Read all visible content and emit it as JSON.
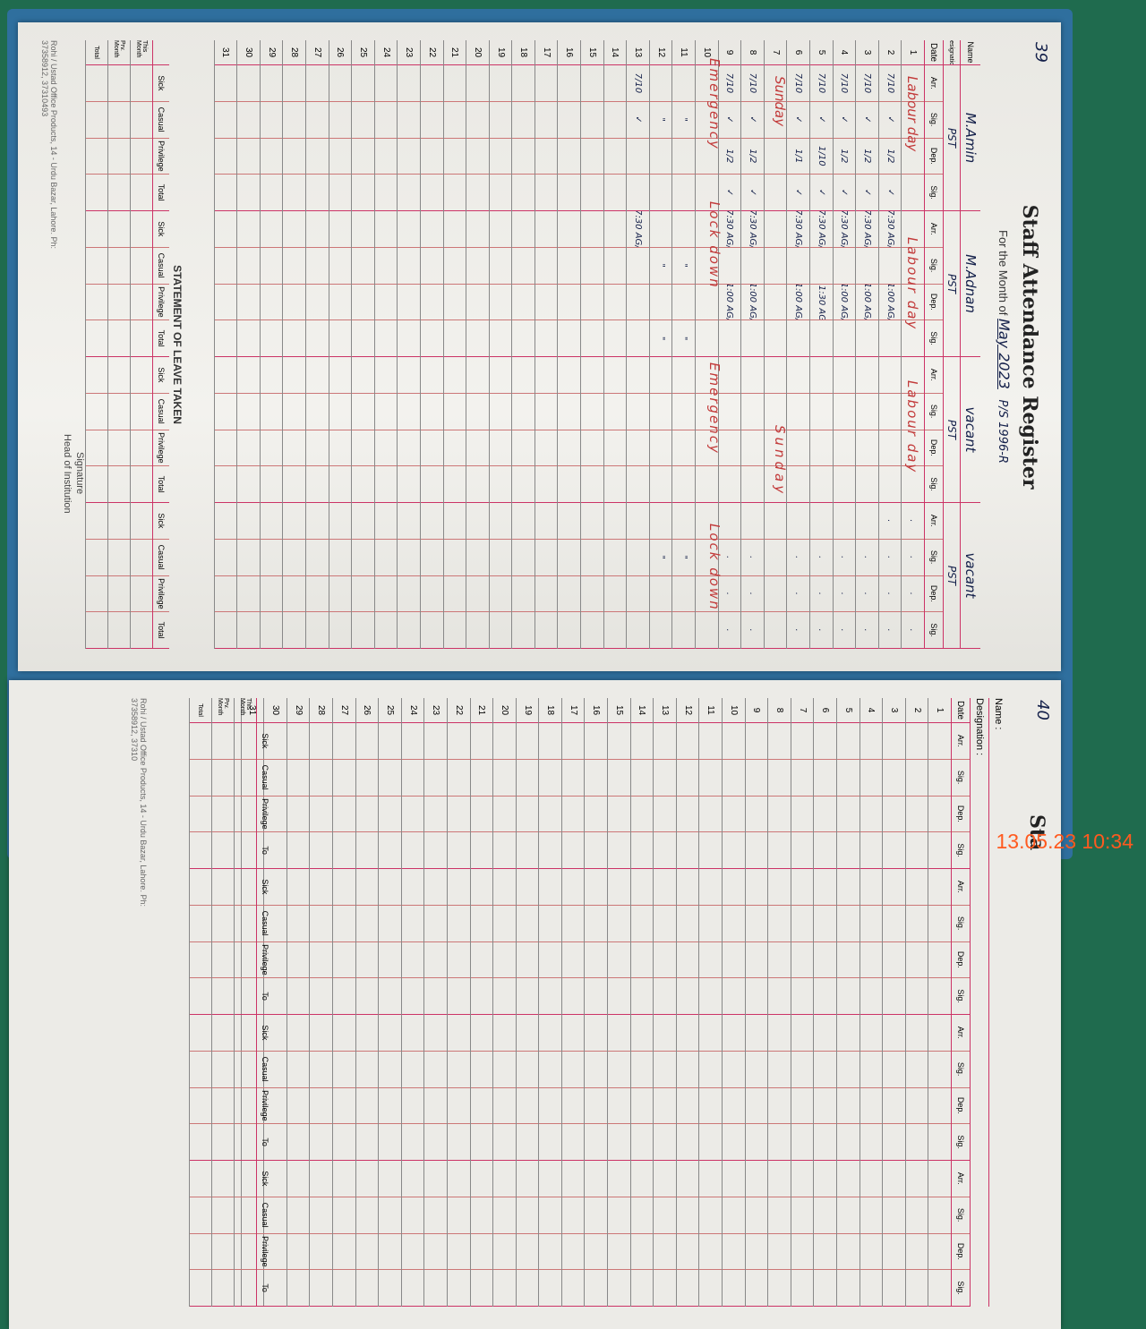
{
  "left_page": {
    "page_number": "39",
    "title": "Staff Attendance Register",
    "month_label": "For the Month of",
    "month_value": "May 2023",
    "reference": "P/S 1996-R",
    "name_label": "Name",
    "designation_label": "Designation",
    "date_label": "Date",
    "col_labels": [
      "Arr.",
      "Sig.",
      "Dep.",
      "Sig."
    ],
    "staff": [
      {
        "name": "M.Amin",
        "designation": "PST"
      },
      {
        "name": "M.Adnan",
        "designation": "PST"
      },
      {
        "name": "vacant",
        "designation": "PST"
      },
      {
        "name": "vacant",
        "designation": "PST"
      }
    ],
    "rows": [
      {
        "date": "1",
        "cells": [
          "",
          "",
          "",
          "",
          "",
          "",
          "",
          "",
          "",
          "",
          "",
          "",
          ".",
          ".",
          ".",
          "."
        ]
      },
      {
        "date": "2",
        "cells": [
          "7/10",
          "✓",
          "1/2",
          "✓",
          "7:30 AG/",
          "",
          "1:00 AG/",
          "",
          "",
          "",
          "",
          "",
          ".",
          ".",
          ".",
          "."
        ]
      },
      {
        "date": "3",
        "cells": [
          "7/10",
          "✓",
          "1/2",
          "✓",
          "7:30 AG/",
          "",
          "1:00 AG/",
          "",
          "",
          "",
          "",
          "",
          "",
          ".",
          ".",
          "."
        ]
      },
      {
        "date": "4",
        "cells": [
          "7/10",
          "✓",
          "1/2",
          "✓",
          "7:30 AG/",
          "",
          "1:00 AG/",
          "",
          "",
          "",
          "",
          "",
          "",
          ".",
          ".",
          "."
        ]
      },
      {
        "date": "5",
        "cells": [
          "7/10",
          "✓",
          "1/10",
          "✓",
          "7:30 AG/",
          "",
          "11:30 AG/",
          "",
          "",
          "",
          "",
          "",
          "",
          ".",
          ".",
          "."
        ]
      },
      {
        "date": "6",
        "cells": [
          "7/10",
          "✓",
          "1/1",
          "✓",
          "7:30 AG/",
          "",
          "1:00 AG/",
          "",
          "",
          "",
          "",
          "",
          "",
          ".",
          ".",
          "."
        ]
      },
      {
        "date": "7",
        "cells": [
          "",
          "",
          "",
          "",
          "",
          "",
          "",
          "",
          "",
          "",
          "",
          "",
          "",
          "",
          "",
          ""
        ]
      },
      {
        "date": "8",
        "cells": [
          "7/10",
          "✓",
          "1/2",
          "✓",
          "7:30 AG/",
          "",
          "1:00 AG/",
          "",
          "",
          "",
          "",
          "",
          "",
          ".",
          ".",
          "."
        ]
      },
      {
        "date": "9",
        "cells": [
          "7/10",
          "✓",
          "1/2",
          "✓",
          "7:30 AG/",
          "",
          "1:00 AG/",
          "",
          "",
          "",
          "",
          "",
          "",
          ".",
          ".",
          "."
        ]
      },
      {
        "date": "10",
        "cells": [
          "",
          "",
          "",
          "",
          "",
          "",
          "",
          "",
          "",
          "",
          "",
          "",
          "",
          "",
          "",
          ""
        ]
      },
      {
        "date": "11",
        "cells": [
          "",
          "\"",
          "",
          "",
          "",
          "\"",
          "",
          "\"",
          "",
          "",
          "",
          "",
          "",
          "\"",
          "",
          ""
        ]
      },
      {
        "date": "12",
        "cells": [
          "",
          "\"",
          "",
          "",
          "",
          "\"",
          "",
          "\"",
          "",
          "",
          "",
          "",
          "",
          "\"",
          "",
          ""
        ]
      },
      {
        "date": "13",
        "cells": [
          "7/10",
          "✓",
          "",
          "",
          "7:30 AG/",
          "",
          "",
          "",
          "",
          "",
          "",
          "",
          "",
          "",
          "",
          ""
        ]
      },
      {
        "date": "14",
        "cells": []
      },
      {
        "date": "15",
        "cells": []
      },
      {
        "date": "16",
        "cells": []
      },
      {
        "date": "17",
        "cells": []
      },
      {
        "date": "18",
        "cells": []
      },
      {
        "date": "19",
        "cells": []
      },
      {
        "date": "20",
        "cells": []
      },
      {
        "date": "21",
        "cells": []
      },
      {
        "date": "22",
        "cells": []
      },
      {
        "date": "23",
        "cells": []
      },
      {
        "date": "24",
        "cells": []
      },
      {
        "date": "25",
        "cells": []
      },
      {
        "date": "26",
        "cells": []
      },
      {
        "date": "27",
        "cells": []
      },
      {
        "date": "28",
        "cells": []
      },
      {
        "date": "29",
        "cells": []
      },
      {
        "date": "30",
        "cells": []
      },
      {
        "date": "31",
        "cells": []
      }
    ],
    "notes": {
      "labour_day": "Labour day",
      "sunday": "Sunday",
      "emergency": "Emergency",
      "lockdown": "Lock down"
    },
    "leave": {
      "title": "STATEMENT OF LEAVE TAKEN",
      "types": [
        "Sick",
        "Casual",
        "Privilege",
        "Total"
      ],
      "row_labels": [
        "This Month",
        "Prv. Month",
        "Total"
      ]
    },
    "signature": "Signature",
    "head": "Head of Institution",
    "publisher": "Rohi / Ustad Office Products, 14 - Urdu Bazar, Lahore. Ph: 37358912, 37310493"
  },
  "right_page": {
    "page_number": "40",
    "title": "Sta",
    "name_label": "Name :",
    "designation_label": "Designation :",
    "date_label": "Date",
    "col_labels": [
      "Arr.",
      "Sig.",
      "Dep.",
      "Sig."
    ],
    "leave_types": [
      "Sick",
      "Casual",
      "Privilege",
      "To"
    ],
    "row_labels": [
      "This Month",
      "Prv. Month",
      "Total"
    ],
    "publisher": "Rohi / Ustad Office Products, 14 - Urdu Bazar, Lahore. Ph: 37358912, 37310"
  },
  "timestamp": "13.05.23  10:34"
}
